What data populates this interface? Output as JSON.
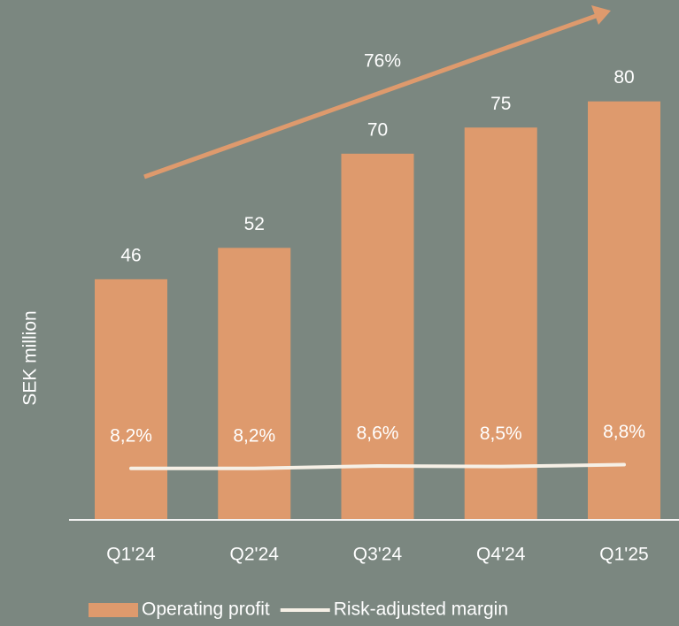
{
  "chart_data": {
    "type": "bar",
    "y_label": "SEK million",
    "annotation": "76%",
    "categories": [
      "Q1'24",
      "Q2'24",
      "Q3'24",
      "Q4'24",
      "Q1'25"
    ],
    "series": [
      {
        "name": "Operating profit",
        "color": "#de9a6d",
        "values": [
          46,
          52,
          70,
          75,
          80
        ]
      },
      {
        "name": "Risk-adjusted margin",
        "color": "#f6f0e6",
        "axis": "y2",
        "values": [
          8.2,
          8.2,
          8.6,
          8.5,
          8.8
        ],
        "value_labels": [
          "8,2%",
          "8,2%",
          "8,6%",
          "8,5%",
          "8,8%"
        ]
      }
    ],
    "ylim": [
      0,
      96
    ],
    "y2lim": [
      0,
      80
    ],
    "legend": "bottom"
  }
}
